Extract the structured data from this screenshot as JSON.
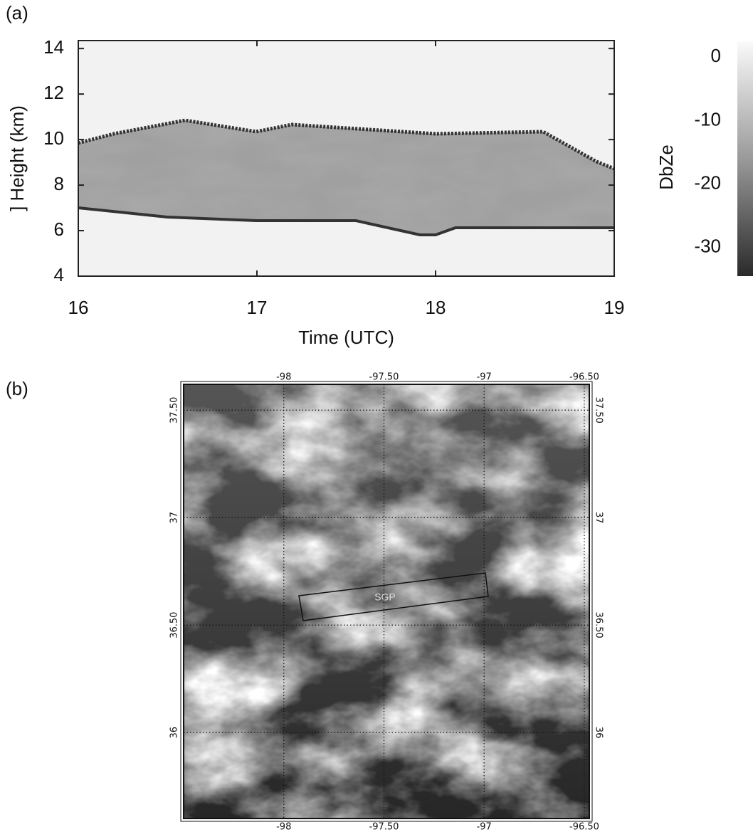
{
  "chart_data": [
    {
      "type": "heatmap",
      "panel_label": "(a)",
      "ylabel": "] Height (km)",
      "xlabel": "Time (UTC)",
      "xlim": [
        16,
        19
      ],
      "xticks": [
        16,
        17,
        18,
        19
      ],
      "ylim": [
        4,
        14.35
      ],
      "yticks": [
        4,
        6,
        8,
        10,
        12,
        14
      ],
      "colorbar": {
        "label": "DbZe",
        "lim": [
          -34.5,
          2.5
        ],
        "ticks": [
          0,
          -10,
          -20,
          -30
        ]
      }
    },
    {
      "type": "map",
      "panel_label": "(b)",
      "annotation": "SGP",
      "grid": true,
      "xlim": [
        -98.5,
        -96.475
      ],
      "xticks": [
        -98,
        {
          "value": -97.5,
          "label": "-97.50"
        },
        -97,
        {
          "value": -96.5,
          "label": "-96.50"
        }
      ],
      "ylim": [
        35.6,
        37.62
      ],
      "yticks": [
        36,
        {
          "value": 36.5,
          "label": "36.50"
        },
        37,
        {
          "value": 37.5,
          "label": "37.50"
        }
      ]
    }
  ]
}
